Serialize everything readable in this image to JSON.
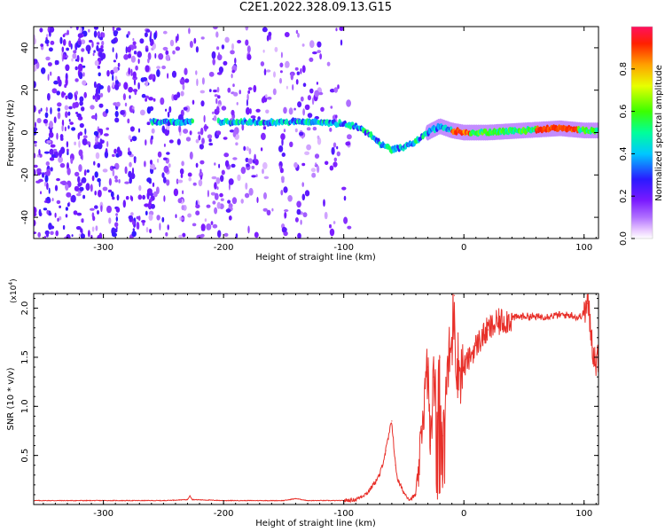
{
  "title": "C2E1.2022.328.09.13.G15",
  "chart_data": [
    {
      "type": "heatmap",
      "xlabel": "Height of straight line (km)",
      "ylabel": "Frequency (Hz)",
      "xlim": [
        -358,
        112
      ],
      "ylim": [
        -50,
        50
      ],
      "xticks": [
        -300,
        -200,
        -100,
        0,
        100
      ],
      "xtick_labels": [
        "-300",
        "-200",
        "-100",
        "0",
        "100"
      ],
      "yticks": [
        -40,
        -20,
        0,
        20,
        40
      ],
      "ytick_labels": [
        "-40",
        "-20",
        "0",
        "20",
        "40"
      ],
      "colorbar": {
        "label": "Normalized spectral amplitude",
        "range": [
          0,
          1
        ],
        "ticks": [
          0.0,
          0.2,
          0.4,
          0.6,
          0.8
        ],
        "tick_labels": [
          "0.0",
          "0.2",
          "0.4",
          "0.6",
          "0.8"
        ],
        "colormap": "rainbow (white-magenta-purple-blue-cyan-green-yellow-orange-red)"
      },
      "signal_ridge": {
        "x": [
          -260,
          -240,
          -200,
          -160,
          -120,
          -100,
          -90,
          -80,
          -70,
          -60,
          -50,
          -40,
          -30,
          -20,
          -10,
          0,
          20,
          50,
          80,
          100,
          112
        ],
        "y": [
          5,
          5,
          5,
          5,
          5,
          4,
          3,
          0,
          -5,
          -8,
          -7,
          -4,
          0,
          3,
          1,
          0,
          0,
          1,
          2,
          1,
          1
        ]
      }
    },
    {
      "type": "line",
      "xlabel": "Height of straight line (km)",
      "ylabel": "SNR (10 * v/v)",
      "y_multiplier_label": "(x10",
      "y_multiplier_exp": "4",
      "xlim": [
        -358,
        112
      ],
      "ylim": [
        0,
        2.15
      ],
      "xticks": [
        -300,
        -200,
        -100,
        0,
        100
      ],
      "xtick_labels": [
        "-300",
        "-200",
        "-100",
        "0",
        "100"
      ],
      "yticks": [
        0.5,
        1.0,
        1.5,
        2.0
      ],
      "ytick_labels": [
        "0.5",
        "1.0",
        "1.5",
        "2.0"
      ],
      "line_color": "#e8302a",
      "series": [
        {
          "x": [
            -358,
            -300,
            -250,
            -230,
            -228,
            -226,
            -200,
            -150,
            -140,
            -130,
            -100,
            -90,
            -80,
            -70,
            -65,
            -60,
            -57,
            -55,
            -50,
            -45,
            -40,
            -38,
            -35,
            -30,
            -28,
            -25,
            -22,
            -20,
            -18,
            -15,
            -12,
            -10,
            -8,
            -6,
            -5,
            -3,
            0,
            5,
            10,
            20,
            30,
            40,
            50,
            60,
            70,
            80,
            90,
            95,
            100,
            103,
            105,
            107,
            110,
            112
          ],
          "y": [
            0.04,
            0.04,
            0.04,
            0.05,
            0.09,
            0.05,
            0.04,
            0.04,
            0.06,
            0.04,
            0.04,
            0.05,
            0.12,
            0.3,
            0.55,
            0.85,
            0.4,
            0.25,
            0.12,
            0.05,
            0.1,
            0.25,
            0.8,
            1.4,
            0.6,
            1.3,
            0.9,
            1.5,
            0.7,
            1.2,
            1.5,
            1.6,
            2.13,
            1.3,
            1.45,
            1.35,
            1.4,
            1.5,
            1.62,
            1.78,
            1.86,
            1.9,
            1.92,
            1.91,
            1.92,
            1.93,
            1.93,
            1.9,
            1.95,
            2.05,
            1.85,
            1.6,
            1.45,
            1.5
          ]
        }
      ]
    }
  ]
}
